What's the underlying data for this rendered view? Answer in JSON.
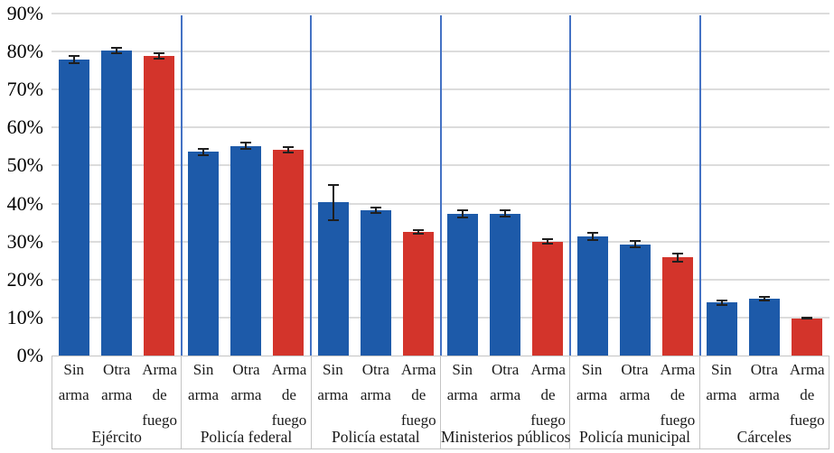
{
  "chart_data": {
    "type": "bar",
    "title": "",
    "xlabel": "",
    "ylabel": "",
    "ylim": [
      0,
      90
    ],
    "grid": true,
    "legend": false,
    "y_tick_labels": [
      "0%",
      "10%",
      "20%",
      "30%",
      "40%",
      "50%",
      "60%",
      "70%",
      "80%",
      "90%"
    ],
    "bar_categories": [
      "Sin arma",
      "Otra arma",
      "Arma de fuego"
    ],
    "bar_category_lines": [
      [
        "Sin",
        "arma"
      ],
      [
        "Otra",
        "arma"
      ],
      [
        "Arma",
        "de",
        "fuego"
      ]
    ],
    "bar_colors": [
      "#1d5aa9",
      "#1d5aa9",
      "#d3342b"
    ],
    "groups": [
      {
        "label": "Ejército",
        "values": [
          78.0,
          80.3,
          78.9
        ],
        "errors": [
          1.2,
          0.9,
          0.9
        ]
      },
      {
        "label": "Policía federal",
        "values": [
          53.6,
          55.2,
          54.1
        ],
        "errors": [
          1.1,
          1.0,
          0.9
        ]
      },
      {
        "label": "Policía estatal",
        "values": [
          40.3,
          38.2,
          32.6
        ],
        "errors": [
          4.9,
          0.9,
          0.7
        ]
      },
      {
        "label": "Ministerios públicos",
        "values": [
          37.3,
          37.4,
          30.0
        ],
        "errors": [
          1.2,
          1.1,
          0.9
        ]
      },
      {
        "label": "Policía municipal",
        "values": [
          31.4,
          29.3,
          25.8
        ],
        "errors": [
          1.2,
          1.0,
          1.3
        ]
      },
      {
        "label": "Cárceles",
        "values": [
          13.9,
          15.0,
          9.8
        ],
        "errors": [
          0.8,
          0.7,
          0.4
        ]
      }
    ],
    "colors": {
      "bar_blue": "#1d5aa9",
      "bar_red": "#d3342b",
      "separator_blue": "#4472c4",
      "gridline_gray": "#dcdcdc",
      "errorbar_black": "#1f1f1f"
    }
  }
}
